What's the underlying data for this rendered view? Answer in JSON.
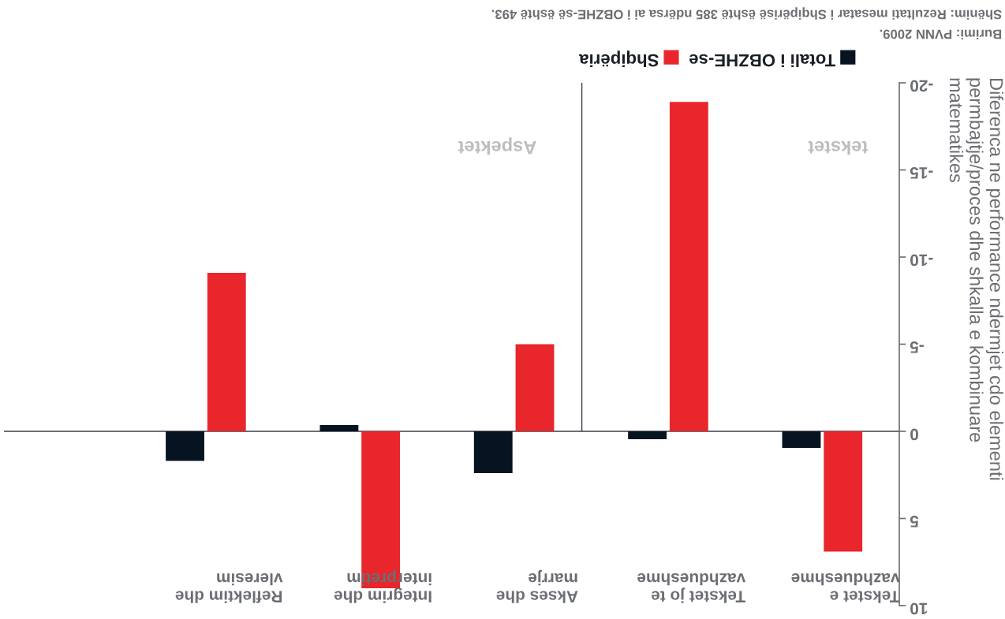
{
  "chart_data": {
    "type": "bar",
    "categories": [
      "Reflektim dhe\nvleresim",
      "Integrim dhe\ninterpretim",
      "Akses dhe\nmarrje",
      "Tekstet jo te\nvazhdueshme",
      "Tekstet e\nvazhdueshme"
    ],
    "series": [
      {
        "name": "Totali i OBZHE-se",
        "color": "#061321",
        "values": [
          1.7,
          -0.36,
          2.4,
          0.45,
          0.95
        ]
      },
      {
        "name": "Shqipëria",
        "color": "#e8262c",
        "values": [
          -9.1,
          9.0,
          -5.0,
          -18.9,
          6.9
        ]
      }
    ],
    "ylabel": "Diferenca ne performance ndermjet cdo elementi\npermbajtje/proces dhe shkalla e kombinuare\nmatematikes",
    "ylim": [
      10,
      -20
    ],
    "yticks": [
      10,
      5,
      0,
      -5,
      -10,
      -15,
      -20
    ],
    "ref_lines": [
      {
        "axis": "y",
        "value": 0,
        "color": "#3a3f47"
      }
    ],
    "annotations": [
      "tekstet",
      "Aspektet",
      "Burimi: PVNN 2009.",
      "Shënim: Rezultati mesatar i Shqipërisë është 385 ndërsa ai i OBZHE-së është 493."
    ],
    "legend": "top"
  }
}
